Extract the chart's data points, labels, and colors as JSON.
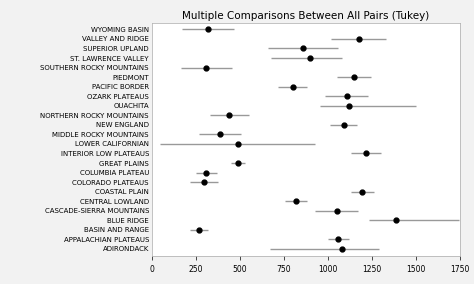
{
  "title": "Multiple Comparisons Between All Pairs (Tukey)",
  "categories": [
    "WYOMING BASIN",
    "VALLEY AND RIDGE",
    "SUPERIOR UPLAND",
    "ST. LAWRENCE VALLEY",
    "SOUTHERN ROCKY MOUNTAINS",
    "PIEDMONT",
    "PACIFIC BORDER",
    "OZARK PLATEAUS",
    "OUACHITA",
    "NORTHERN ROCKY MOUNTAINS",
    "NEW ENGLAND",
    "MIDDLE ROCKY MOUNTAINS",
    "LOWER CALIFORNIAN",
    "INTERIOR LOW PLATEAUS",
    "GREAT PLAINS",
    "COLUMBIA PLATEAU",
    "COLORADO PLATEAUS",
    "COASTAL PLAIN",
    "CENTRAL LOWLAND",
    "CASCADE-SIERRA MOUNTAINS",
    "BLUE RIDGE",
    "BASIN AND RANGE",
    "APPALACHIAN PLATEAUS",
    "ADIRONDACK"
  ],
  "centers": [
    320,
    1175,
    860,
    900,
    310,
    1150,
    800,
    1110,
    1120,
    440,
    1090,
    390,
    490,
    1215,
    490,
    310,
    295,
    1195,
    820,
    1050,
    1390,
    270,
    1060,
    1080
  ],
  "lo": [
    170,
    1020,
    660,
    680,
    165,
    1055,
    720,
    985,
    955,
    330,
    1015,
    270,
    50,
    1130,
    450,
    250,
    215,
    1130,
    760,
    930,
    1235,
    220,
    1000,
    670
  ],
  "hi": [
    470,
    1330,
    1060,
    1080,
    455,
    1245,
    880,
    1230,
    1500,
    550,
    1165,
    510,
    930,
    1300,
    530,
    370,
    375,
    1260,
    880,
    1170,
    1745,
    320,
    1120,
    1290
  ],
  "xlim": [
    0,
    1750
  ],
  "xticks": [
    0,
    250,
    500,
    750,
    1000,
    1250,
    1500,
    1750
  ],
  "marker_color": "black",
  "line_color": "#999999",
  "marker_size": 3.5,
  "line_width": 1.0,
  "title_fontsize": 7.5,
  "label_fontsize": 5.0,
  "tick_fontsize": 5.5,
  "background_color": "#f2f2f2",
  "plot_background": "#ffffff"
}
